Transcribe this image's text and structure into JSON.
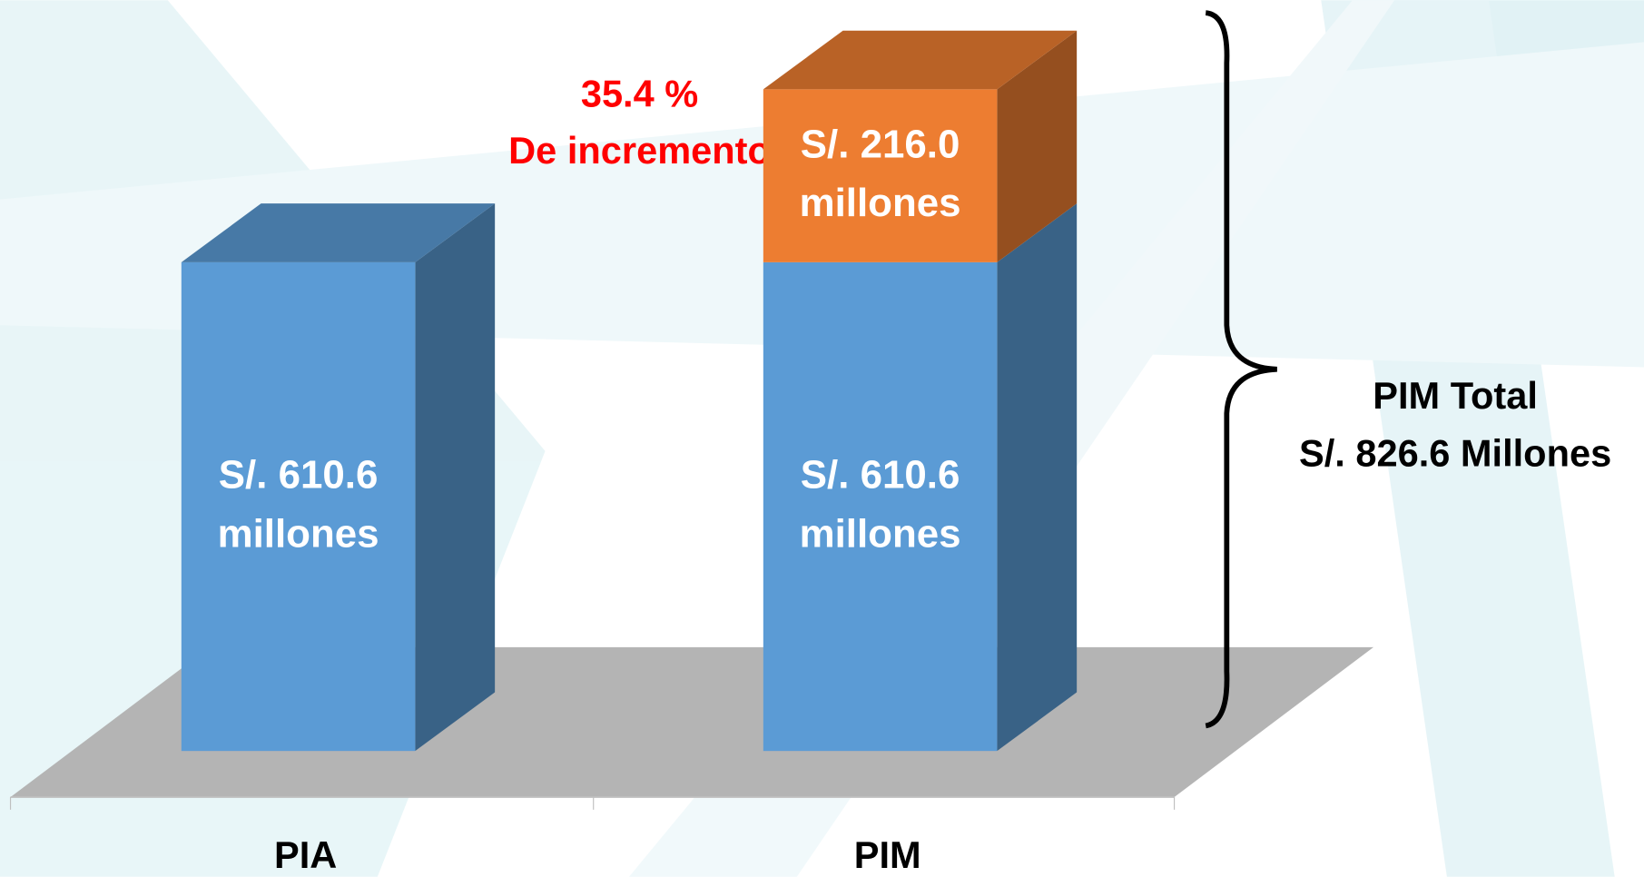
{
  "chart_data": {
    "type": "bar3d_stacked",
    "categories": [
      "PIA",
      "PIM"
    ],
    "series": [
      {
        "color": "#5b9bd5",
        "values": [
          610.6,
          610.6
        ],
        "value_labels": [
          "S/. 610.6 millones",
          "S/. 610.6 millones"
        ]
      },
      {
        "color": "#ed7d31",
        "values": [
          null,
          216.0
        ],
        "value_labels": [
          null,
          "S/. 216.0 millones"
        ]
      }
    ],
    "ylim": [
      0,
      900
    ],
    "annotations": [
      "35.4 %",
      "De incremento",
      "PIM Total",
      "S/. 826.6 Millones"
    ]
  }
}
